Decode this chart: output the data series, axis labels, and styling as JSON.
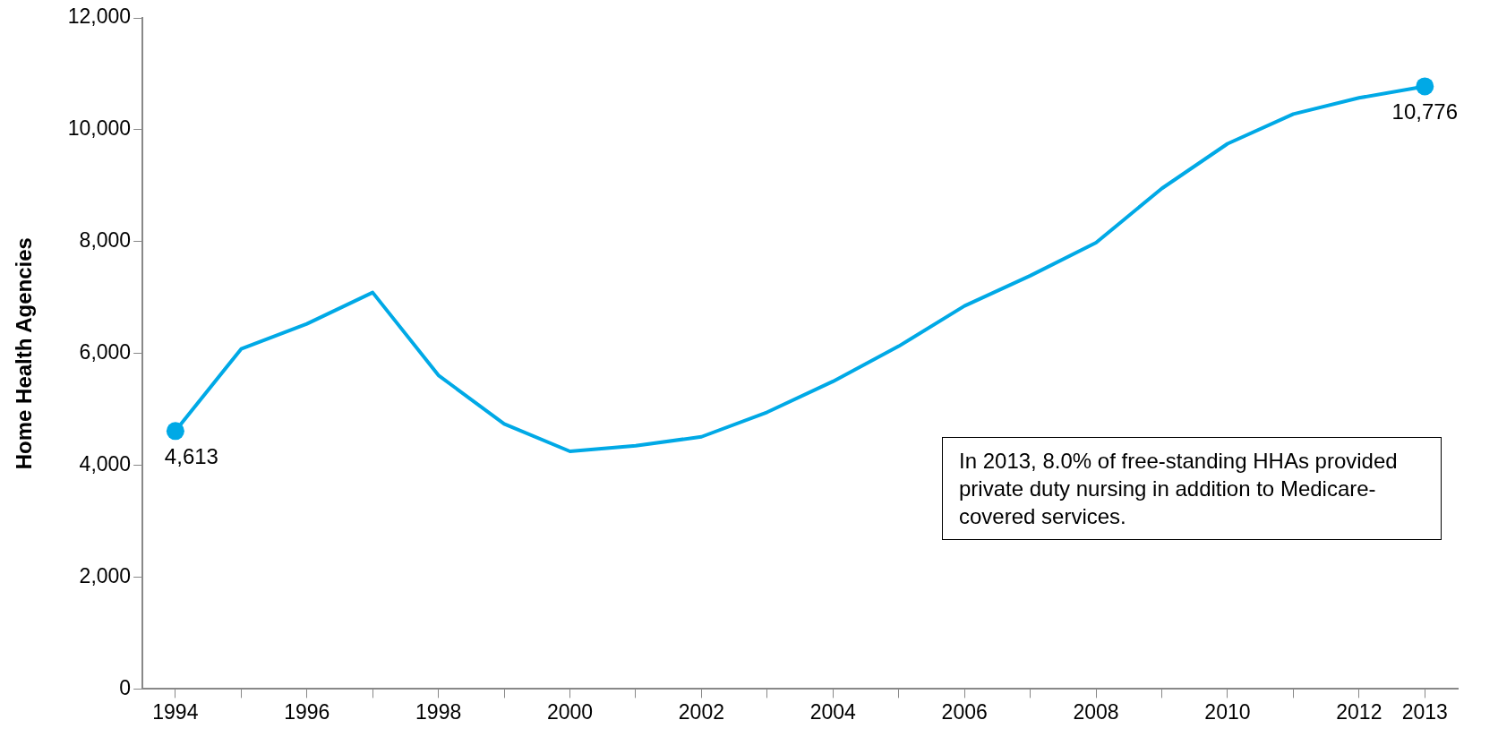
{
  "chart_data": {
    "type": "line",
    "ylabel": "Home Health Agencies",
    "categories": [
      "1994",
      null,
      "1996",
      null,
      "1998",
      null,
      "2000",
      null,
      "2002",
      null,
      "2004",
      null,
      "2006",
      null,
      "2008",
      null,
      "2010",
      null,
      "2012",
      "2013"
    ],
    "series": [
      {
        "color": "#00a9e6",
        "values": [
          4613,
          6080,
          6530,
          7090,
          5610,
          4740,
          4250,
          4350,
          4510,
          4950,
          5500,
          6130,
          6850,
          7390,
          7980,
          8950,
          9750,
          10280,
          10570,
          10776
        ],
        "value_labels": [
          "4,613",
          null,
          null,
          null,
          null,
          null,
          null,
          null,
          null,
          null,
          null,
          null,
          null,
          null,
          null,
          null,
          null,
          null,
          null,
          "10,776"
        ]
      }
    ],
    "ylim": [
      0,
      12000
    ],
    "yticks": [
      {
        "value": 0,
        "label": "0"
      },
      {
        "value": 2000,
        "label": "2,000"
      },
      {
        "value": 4000,
        "label": "4,000"
      },
      {
        "value": 6000,
        "label": "6,000"
      },
      {
        "value": 8000,
        "label": "8,000"
      },
      {
        "value": 10000,
        "label": "10,000"
      },
      {
        "value": 12000,
        "label": "12,000"
      }
    ],
    "grid": false,
    "legend": false,
    "annotations": [
      "In 2013, 8.0% of free-standing HHAs provided private duty nursing in addition to Medicare-covered services."
    ]
  }
}
